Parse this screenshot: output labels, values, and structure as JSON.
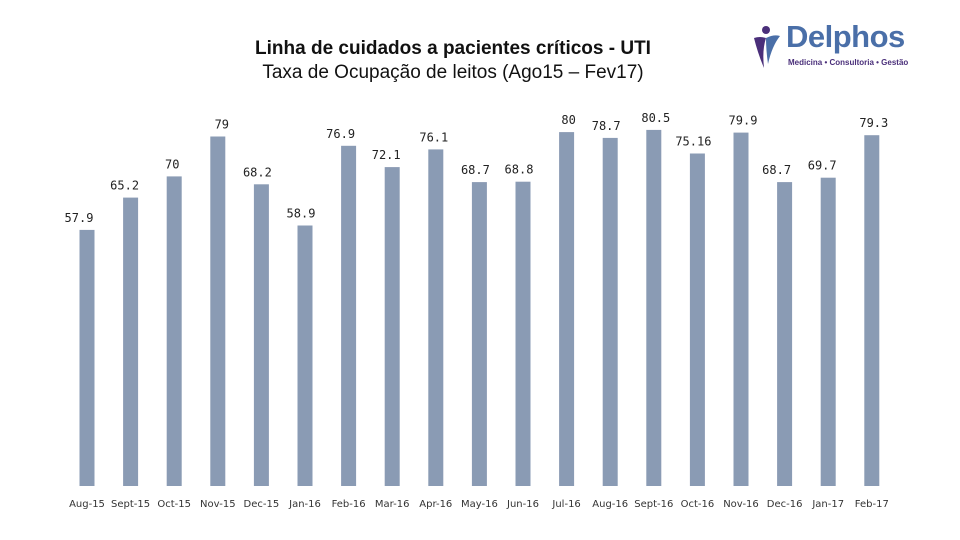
{
  "title": "Linha de cuidados a pacientes críticos - UTI",
  "subtitle": "Taxa de Ocupação de leitos (Ago15 – Fev17)",
  "logo": {
    "name": "Delphos",
    "tagline": "Medicina • Consultoria • Gestão",
    "name_color": "#4a6fa8",
    "tagline_color": "#4a2f7a"
  },
  "chart_data": {
    "type": "bar",
    "title": "Linha de cuidados a pacientes críticos - UTI",
    "subtitle": "Taxa de Ocupação de leitos (Ago15 – Fev17)",
    "categories": [
      "Aug-15",
      "Sept-15",
      "Oct-15",
      "Nov-15",
      "Dec-15",
      "Jan-16",
      "Feb-16",
      "Mar-16",
      "Apr-16",
      "May-16",
      "Jun-16",
      "Jul-16",
      "Aug-16",
      "Sept-16",
      "Oct-16",
      "Nov-16",
      "Dec-16",
      "Jan-17",
      "Feb-17"
    ],
    "values": [
      57.9,
      65.2,
      70,
      79,
      68.2,
      58.9,
      76.9,
      72.1,
      76.1,
      68.7,
      68.8,
      80,
      78.7,
      80.5,
      75.16,
      79.9,
      68.7,
      69.7,
      79.3
    ],
    "labels": [
      "57.9",
      "65.2",
      "70",
      "79",
      "68.2",
      "58.9",
      "76.9",
      "72.1",
      "76.1",
      "68.7",
      "68.8",
      "80",
      "78.7",
      "80.5",
      "75.16",
      "79.9",
      "68.7",
      "69.7",
      "79.3"
    ],
    "bar_color": "#8a9bb4",
    "ylim": [
      0,
      85
    ],
    "grid": false,
    "legend": "none",
    "xlabel": "",
    "ylabel": ""
  }
}
